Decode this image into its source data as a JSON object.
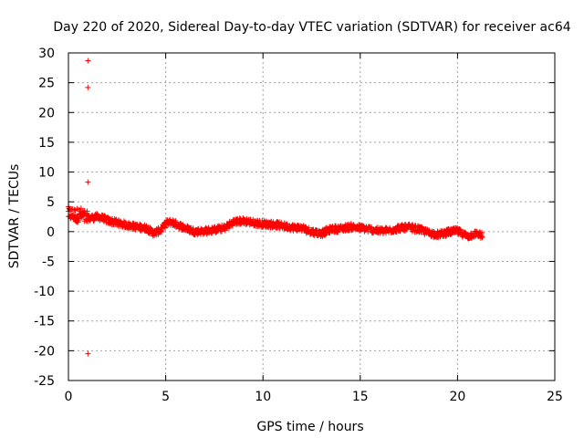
{
  "chart_data": {
    "type": "scatter",
    "title": "Day 220 of 2020, Sidereal Day-to-day VTEC variation (SDTVAR) for receiver ac64",
    "xlabel": "GPS time / hours",
    "ylabel": "SDTVAR / TECUs",
    "xlim": [
      0,
      25
    ],
    "ylim": [
      -25,
      30
    ],
    "xticks": [
      0,
      5,
      10,
      15,
      20,
      25
    ],
    "yticks": [
      -25,
      -20,
      -15,
      -10,
      -5,
      0,
      5,
      10,
      15,
      20,
      25,
      30
    ],
    "grid": true,
    "marker": "+",
    "color": "#ff0000",
    "outliers": [
      {
        "x": 1.0,
        "y": 28.7
      },
      {
        "x": 1.0,
        "y": 24.2
      },
      {
        "x": 1.0,
        "y": 8.3
      },
      {
        "x": 1.0,
        "y": -20.5
      }
    ],
    "series_trend": [
      [
        0.0,
        3.0
      ],
      [
        0.2,
        2.9
      ],
      [
        0.4,
        2.7
      ],
      [
        0.6,
        2.9
      ],
      [
        0.8,
        2.6
      ],
      [
        0.9,
        2.2
      ],
      [
        1.2,
        2.3
      ],
      [
        1.5,
        2.5
      ],
      [
        1.8,
        2.2
      ],
      [
        2.0,
        1.9
      ],
      [
        2.5,
        1.5
      ],
      [
        3.0,
        1.1
      ],
      [
        3.5,
        0.8
      ],
      [
        4.0,
        0.6
      ],
      [
        4.4,
        -0.3
      ],
      [
        4.8,
        0.4
      ],
      [
        5.0,
        1.4
      ],
      [
        5.3,
        1.6
      ],
      [
        5.7,
        1.0
      ],
      [
        6.0,
        0.6
      ],
      [
        6.5,
        0.0
      ],
      [
        7.0,
        0.1
      ],
      [
        7.5,
        0.3
      ],
      [
        8.0,
        0.6
      ],
      [
        8.5,
        1.6
      ],
      [
        9.0,
        1.8
      ],
      [
        9.5,
        1.5
      ],
      [
        10.0,
        1.3
      ],
      [
        10.5,
        1.2
      ],
      [
        11.0,
        1.0
      ],
      [
        11.5,
        0.7
      ],
      [
        12.0,
        0.6
      ],
      [
        12.5,
        0.0
      ],
      [
        13.0,
        -0.3
      ],
      [
        13.5,
        0.4
      ],
      [
        14.0,
        0.5
      ],
      [
        14.5,
        0.8
      ],
      [
        15.0,
        0.6
      ],
      [
        15.5,
        0.4
      ],
      [
        16.0,
        0.1
      ],
      [
        16.5,
        0.2
      ],
      [
        17.0,
        0.6
      ],
      [
        17.5,
        0.7
      ],
      [
        18.0,
        0.4
      ],
      [
        18.5,
        -0.2
      ],
      [
        19.0,
        -0.5
      ],
      [
        19.5,
        -0.1
      ],
      [
        20.0,
        0.1
      ],
      [
        20.5,
        -0.8
      ],
      [
        21.0,
        -0.3
      ],
      [
        21.3,
        -0.8
      ]
    ]
  }
}
